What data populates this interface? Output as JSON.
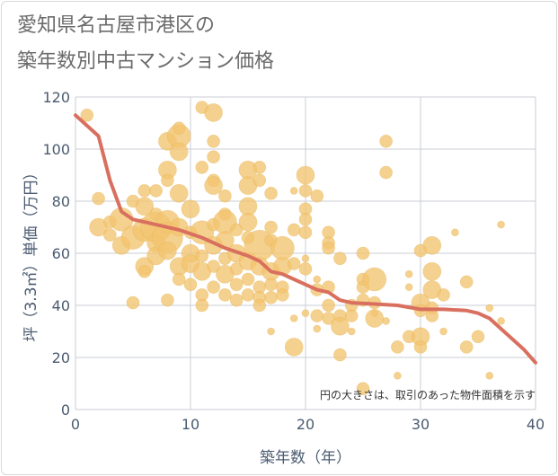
{
  "title_line1": "愛知県名古屋市港区の",
  "title_line2": "築年数別中古マンション価格",
  "chart_data": {
    "type": "scatter",
    "xlabel": "築年数（年）",
    "ylabel": "坪（3.3㎡）単価（万円）",
    "xlim": [
      0,
      40
    ],
    "ylim": [
      0,
      120
    ],
    "xticks": [
      0,
      10,
      20,
      30,
      40
    ],
    "yticks": [
      0,
      20,
      40,
      60,
      80,
      100,
      120
    ],
    "grid": true,
    "note": "円の大きさは、取引のあった物件面積を示す",
    "colors": {
      "bubble": "#f2c46f",
      "trend": "#d9705f",
      "grid": "#c8cdd6"
    },
    "trend": {
      "x": [
        0,
        2,
        3,
        4,
        5,
        7,
        9,
        11,
        13,
        15,
        16,
        17,
        18,
        19,
        20,
        21,
        22,
        23,
        24,
        26,
        28,
        30,
        32,
        34,
        35,
        36,
        37,
        38,
        39,
        40
      ],
      "y": [
        113,
        105,
        88,
        76,
        73,
        71,
        69,
        66,
        62,
        59,
        57,
        53,
        52,
        50,
        48,
        46,
        45,
        42,
        41,
        40.5,
        40,
        38.5,
        38.5,
        38,
        37,
        35,
        31,
        27,
        23,
        18
      ]
    },
    "points": [
      [
        1,
        113,
        2
      ],
      [
        2,
        81,
        2
      ],
      [
        2,
        70,
        3
      ],
      [
        3,
        67,
        2
      ],
      [
        3,
        72,
        2
      ],
      [
        4,
        73,
        4
      ],
      [
        4,
        63,
        3
      ],
      [
        5,
        66,
        4
      ],
      [
        5,
        80,
        2
      ],
      [
        5,
        41,
        2
      ],
      [
        6,
        84,
        2
      ],
      [
        6,
        78,
        3
      ],
      [
        6,
        69,
        4
      ],
      [
        6,
        55,
        3
      ],
      [
        6,
        53,
        2
      ],
      [
        7,
        70,
        5
      ],
      [
        7,
        64,
        3
      ],
      [
        7,
        59,
        3
      ],
      [
        7,
        84,
        2
      ],
      [
        7,
        75,
        2
      ],
      [
        8,
        103,
        3
      ],
      [
        8,
        92,
        3
      ],
      [
        8,
        88,
        2
      ],
      [
        8,
        72,
        4
      ],
      [
        8,
        66,
        5
      ],
      [
        8,
        61,
        3
      ],
      [
        8,
        42,
        2
      ],
      [
        9,
        105,
        4
      ],
      [
        9,
        99,
        3
      ],
      [
        9,
        108,
        2
      ],
      [
        9,
        83,
        3
      ],
      [
        9,
        70,
        3
      ],
      [
        9,
        55,
        3
      ],
      [
        9,
        50,
        2
      ],
      [
        10,
        77,
        3
      ],
      [
        10,
        68,
        2
      ],
      [
        10,
        60,
        3
      ],
      [
        10,
        56,
        3
      ],
      [
        10,
        48,
        2
      ],
      [
        11,
        116,
        2
      ],
      [
        11,
        93,
        2
      ],
      [
        11,
        68,
        4
      ],
      [
        11,
        59,
        2
      ],
      [
        11,
        53,
        3
      ],
      [
        11,
        44,
        2
      ],
      [
        11,
        40,
        2
      ],
      [
        12,
        114,
        3
      ],
      [
        12,
        103,
        2
      ],
      [
        12,
        97,
        2
      ],
      [
        12,
        88,
        2
      ],
      [
        12,
        86,
        3
      ],
      [
        12,
        71,
        2
      ],
      [
        12,
        63,
        3
      ],
      [
        12,
        55,
        2
      ],
      [
        12,
        47,
        2
      ],
      [
        13,
        82,
        2
      ],
      [
        13,
        75,
        2
      ],
      [
        13,
        72,
        4
      ],
      [
        13,
        65,
        3
      ],
      [
        13,
        58,
        2
      ],
      [
        13,
        52,
        3
      ],
      [
        13,
        44,
        2
      ],
      [
        14,
        69,
        2
      ],
      [
        14,
        60,
        3
      ],
      [
        14,
        54,
        2
      ],
      [
        14,
        48,
        2
      ],
      [
        14,
        42,
        2
      ],
      [
        15,
        92,
        3
      ],
      [
        15,
        86,
        3
      ],
      [
        15,
        78,
        3
      ],
      [
        15,
        72,
        3
      ],
      [
        15,
        66,
        2
      ],
      [
        15,
        57,
        3
      ],
      [
        15,
        50,
        2
      ],
      [
        15,
        44,
        2
      ],
      [
        16,
        93,
        2
      ],
      [
        16,
        88,
        2
      ],
      [
        16,
        63,
        5
      ],
      [
        16,
        55,
        3
      ],
      [
        16,
        47,
        2
      ],
      [
        16,
        43,
        2
      ],
      [
        16,
        40,
        2
      ],
      [
        17,
        83,
        2
      ],
      [
        17,
        70,
        2
      ],
      [
        17,
        65,
        2
      ],
      [
        17,
        53,
        3
      ],
      [
        17,
        48,
        2
      ],
      [
        17,
        43,
        2
      ],
      [
        17,
        30,
        1
      ],
      [
        18,
        62,
        4
      ],
      [
        18,
        55,
        3
      ],
      [
        18,
        47,
        2
      ],
      [
        18,
        44,
        2
      ],
      [
        19,
        84,
        1
      ],
      [
        19,
        69,
        2
      ],
      [
        19,
        56,
        2
      ],
      [
        19,
        24,
        3
      ],
      [
        19,
        35,
        1
      ],
      [
        20,
        90,
        3
      ],
      [
        20,
        84,
        2
      ],
      [
        20,
        77,
        2
      ],
      [
        20,
        73,
        2
      ],
      [
        20,
        68,
        2
      ],
      [
        20,
        58,
        1
      ],
      [
        20,
        54,
        2
      ],
      [
        20,
        37,
        1
      ],
      [
        21,
        82,
        2
      ],
      [
        21,
        50,
        1
      ],
      [
        21,
        46,
        2
      ],
      [
        21,
        36,
        2
      ],
      [
        21,
        31,
        1
      ],
      [
        22,
        68,
        2
      ],
      [
        22,
        64,
        2
      ],
      [
        22,
        62,
        2
      ],
      [
        22,
        47,
        2
      ],
      [
        22,
        40,
        2
      ],
      [
        22,
        35,
        2
      ],
      [
        23,
        58,
        2
      ],
      [
        23,
        36,
        2
      ],
      [
        23,
        32,
        3
      ],
      [
        23,
        21,
        2
      ],
      [
        24,
        40,
        2
      ],
      [
        24,
        36,
        2
      ],
      [
        24,
        30,
        1
      ],
      [
        25,
        60,
        2
      ],
      [
        25,
        50,
        2
      ],
      [
        25,
        47,
        2
      ],
      [
        25,
        42,
        2
      ],
      [
        25,
        8,
        2
      ],
      [
        26,
        50,
        4
      ],
      [
        26,
        41,
        2
      ],
      [
        26,
        37,
        1
      ],
      [
        26,
        35,
        3
      ],
      [
        27,
        103,
        2
      ],
      [
        27,
        91,
        2
      ],
      [
        27,
        34,
        1
      ],
      [
        28,
        24,
        2
      ],
      [
        28,
        13,
        1
      ],
      [
        29,
        52,
        1
      ],
      [
        29,
        28,
        2
      ],
      [
        29,
        47,
        1
      ],
      [
        30,
        61,
        2
      ],
      [
        30,
        41,
        3
      ],
      [
        30,
        38,
        2
      ],
      [
        30,
        28,
        3
      ],
      [
        30,
        24,
        2
      ],
      [
        31,
        63,
        3
      ],
      [
        31,
        53,
        3
      ],
      [
        31,
        46,
        3
      ],
      [
        31,
        39,
        2
      ],
      [
        31,
        36,
        2
      ],
      [
        32,
        44,
        2
      ],
      [
        32,
        30,
        1
      ],
      [
        33,
        68,
        1
      ],
      [
        34,
        49,
        2
      ],
      [
        34,
        24,
        2
      ],
      [
        35,
        28,
        2
      ],
      [
        36,
        39,
        1
      ],
      [
        36,
        13,
        1
      ],
      [
        37,
        71,
        1
      ],
      [
        37,
        34,
        1
      ]
    ]
  }
}
